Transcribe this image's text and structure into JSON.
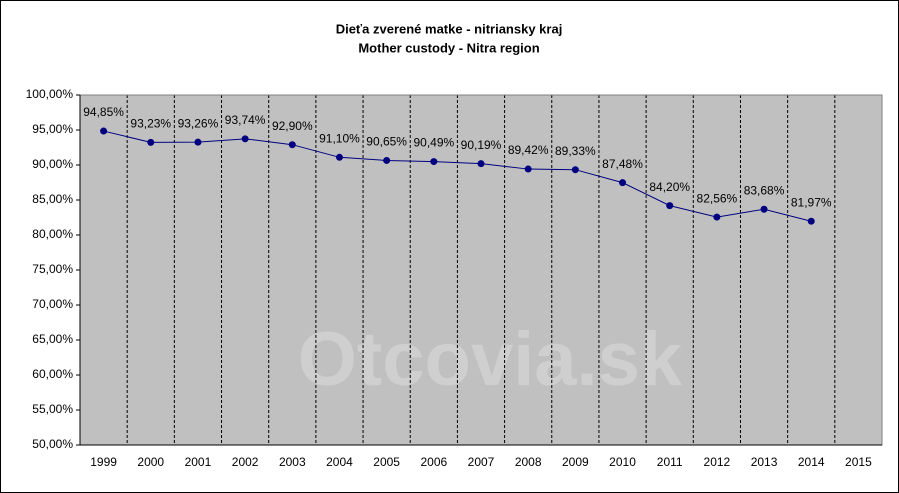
{
  "chart_data": {
    "type": "line",
    "title": "Dieťa zverené matke - nitriansky kraj",
    "subtitle": "Mother custody - Nitra region",
    "watermark": "Otcovia.sk",
    "categories": [
      "1999",
      "2000",
      "2001",
      "2002",
      "2003",
      "2004",
      "2005",
      "2006",
      "2007",
      "2008",
      "2009",
      "2010",
      "2011",
      "2012",
      "2013",
      "2014",
      "2015"
    ],
    "series": [
      {
        "name": "Mother custody",
        "color": "#000080",
        "values": [
          94.85,
          93.23,
          93.26,
          93.74,
          92.9,
          91.1,
          90.65,
          90.49,
          90.19,
          89.42,
          89.33,
          87.48,
          84.2,
          82.56,
          83.68,
          81.97,
          null
        ],
        "value_labels": [
          "94,85%",
          "93,23%",
          "93,26%",
          "93,74%",
          "92,90%",
          "91,10%",
          "90,65%",
          "90,49%",
          "90,19%",
          "89,42%",
          "89,33%",
          "87,48%",
          "84,20%",
          "82,56%",
          "83,68%",
          "81,97%",
          null
        ]
      }
    ],
    "ylim": [
      50,
      100
    ],
    "yticks": [
      {
        "value": 50,
        "label": "50,00%"
      },
      {
        "value": 55,
        "label": "55,00%"
      },
      {
        "value": 60,
        "label": "60,00%"
      },
      {
        "value": 65,
        "label": "65,00%"
      },
      {
        "value": 70,
        "label": "70,00%"
      },
      {
        "value": 75,
        "label": "75,00%"
      },
      {
        "value": 80,
        "label": "80,00%"
      },
      {
        "value": 85,
        "label": "85,00%"
      },
      {
        "value": 90,
        "label": "90,00%"
      },
      {
        "value": 95,
        "label": "95,00%"
      },
      {
        "value": 100,
        "label": "100,00%"
      }
    ],
    "plot_background": "#c0c0c0"
  }
}
